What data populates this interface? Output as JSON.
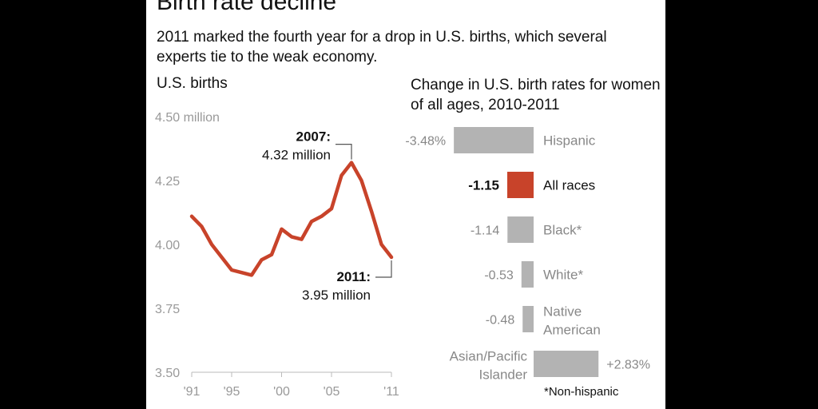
{
  "title": "Birth rate decline",
  "subtitle": "2011 marked the fourth year for a drop in U.S. births, which several experts tie to the weak economy.",
  "colors": {
    "line": "#c8432a",
    "highlight_bar": "#c8432a",
    "bar": "#b3b3b3",
    "muted_text": "#888888"
  },
  "chart_data": [
    {
      "type": "line",
      "title": "U.S. births",
      "ylabel": "million",
      "ylim": [
        3.5,
        4.5
      ],
      "y_ticks": [
        {
          "value": 4.5,
          "label": "4.50 million"
        },
        {
          "value": 4.25,
          "label": "4.25"
        },
        {
          "value": 4.0,
          "label": "4.00"
        },
        {
          "value": 3.75,
          "label": "3.75"
        },
        {
          "value": 3.5,
          "label": "3.50"
        }
      ],
      "xlim": [
        1991,
        2011
      ],
      "x_ticks": [
        {
          "value": 1991,
          "label": "'91"
        },
        {
          "value": 1995,
          "label": "'95"
        },
        {
          "value": 2000,
          "label": "'00"
        },
        {
          "value": 2005,
          "label": "'05"
        },
        {
          "value": 2011,
          "label": "'11"
        }
      ],
      "series": [
        {
          "name": "U.S. births",
          "x": [
            1991,
            1992,
            1993,
            1994,
            1995,
            1996,
            1997,
            1998,
            1999,
            2000,
            2001,
            2002,
            2003,
            2004,
            2005,
            2006,
            2007,
            2008,
            2009,
            2010,
            2011
          ],
          "values": [
            4.11,
            4.07,
            4.0,
            3.95,
            3.9,
            3.89,
            3.88,
            3.94,
            3.96,
            4.06,
            4.03,
            4.02,
            4.09,
            4.11,
            4.14,
            4.27,
            4.32,
            4.25,
            4.13,
            4.0,
            3.95
          ]
        }
      ],
      "annotations": [
        {
          "x": 2007,
          "value": 4.32,
          "label_bold": "2007:",
          "label": "4.32 million"
        },
        {
          "x": 2011,
          "value": 3.95,
          "label_bold": "2011:",
          "label": "3.95 million"
        }
      ]
    },
    {
      "type": "bar",
      "orientation": "horizontal",
      "title": "Change in U.S. birth rates for women of all ages, 2010-2011",
      "categories": [
        "Hispanic",
        "All races",
        "Black*",
        "White*",
        "Native American",
        "Asian/Pacific Islander"
      ],
      "values": [
        -3.48,
        -1.15,
        -1.14,
        -0.53,
        -0.48,
        2.83
      ],
      "value_labels": [
        "-3.48%",
        "-1.15",
        "-1.14",
        "-0.53",
        "-0.48",
        "+2.83%"
      ],
      "highlight": "All races",
      "footnote": "*Non-hispanic"
    }
  ]
}
